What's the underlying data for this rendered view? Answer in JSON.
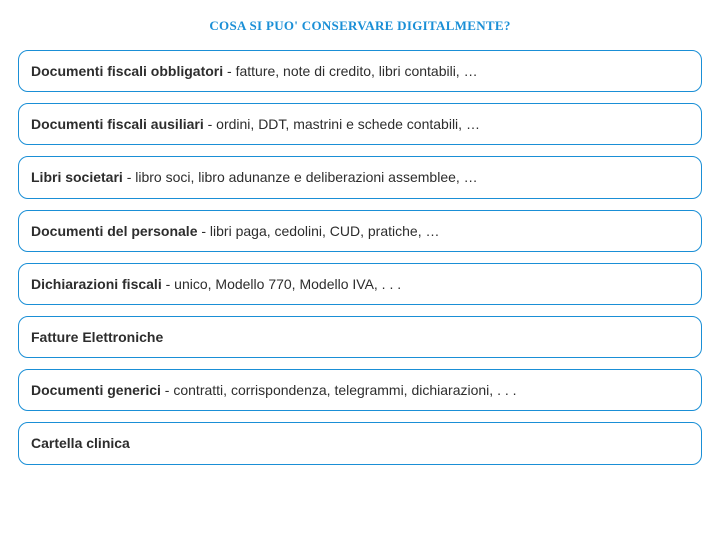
{
  "title": {
    "text": "COSA SI PUO' CONSERVARE DIGITALMENTE?",
    "color": "#1a8fd6"
  },
  "border_color": "#1a8fd6",
  "text_color": "#2d2d2d",
  "background_color": "#ffffff",
  "items": [
    {
      "label": "Documenti fiscali obbligatori",
      "desc": " - fatture, note di credito, libri contabili, …"
    },
    {
      "label": "Documenti fiscali ausiliari",
      "desc": " - ordini, DDT, mastrini e schede contabili, …"
    },
    {
      "label": "Libri societari",
      "desc": " - libro soci, libro adunanze e deliberazioni assemblee, …"
    },
    {
      "label": "Documenti del personale",
      "desc": " - libri paga, cedolini, CUD, pratiche, …"
    },
    {
      "label": "Dichiarazioni fiscali",
      "desc": " - unico, Modello 770, Modello IVA, . . ."
    },
    {
      "label": "Fatture Elettroniche",
      "desc": ""
    },
    {
      "label": "Documenti generici",
      "desc": " - contratti, corrispondenza, telegrammi, dichiarazioni, . . ."
    },
    {
      "label": "Cartella clinica",
      "desc": ""
    }
  ]
}
